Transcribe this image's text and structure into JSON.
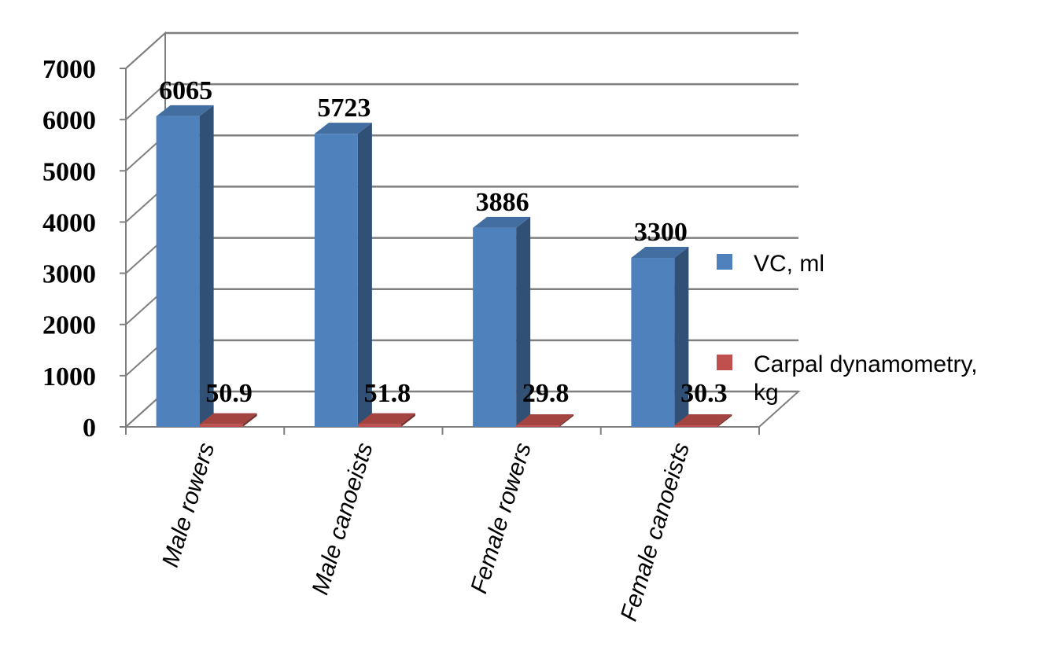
{
  "chart_data": {
    "type": "bar",
    "title": "",
    "xlabel": "",
    "ylabel": "",
    "categories": [
      "Male rowers",
      "Male canoeists",
      "Female rowers",
      "Female canoeists"
    ],
    "series": [
      {
        "name": "VC, ml",
        "values": [
          6065,
          5723,
          3886,
          3300
        ],
        "labels": [
          "6065",
          "5723",
          "3886",
          "3300"
        ],
        "color": "#4f81bd"
      },
      {
        "name": "Carpal dynamometry, kg",
        "values": [
          50.9,
          51.8,
          29.8,
          30.3
        ],
        "labels": [
          "50.9",
          "51.8",
          "29.8",
          "30.3"
        ],
        "color": "#c0504d"
      }
    ],
    "ylim": [
      0,
      7000
    ],
    "yticks": [
      "0",
      "1000",
      "2000",
      "3000",
      "4000",
      "5000",
      "6000",
      "7000"
    ],
    "grid": true,
    "legend_position": "right",
    "style": "3d-clustered-column"
  }
}
